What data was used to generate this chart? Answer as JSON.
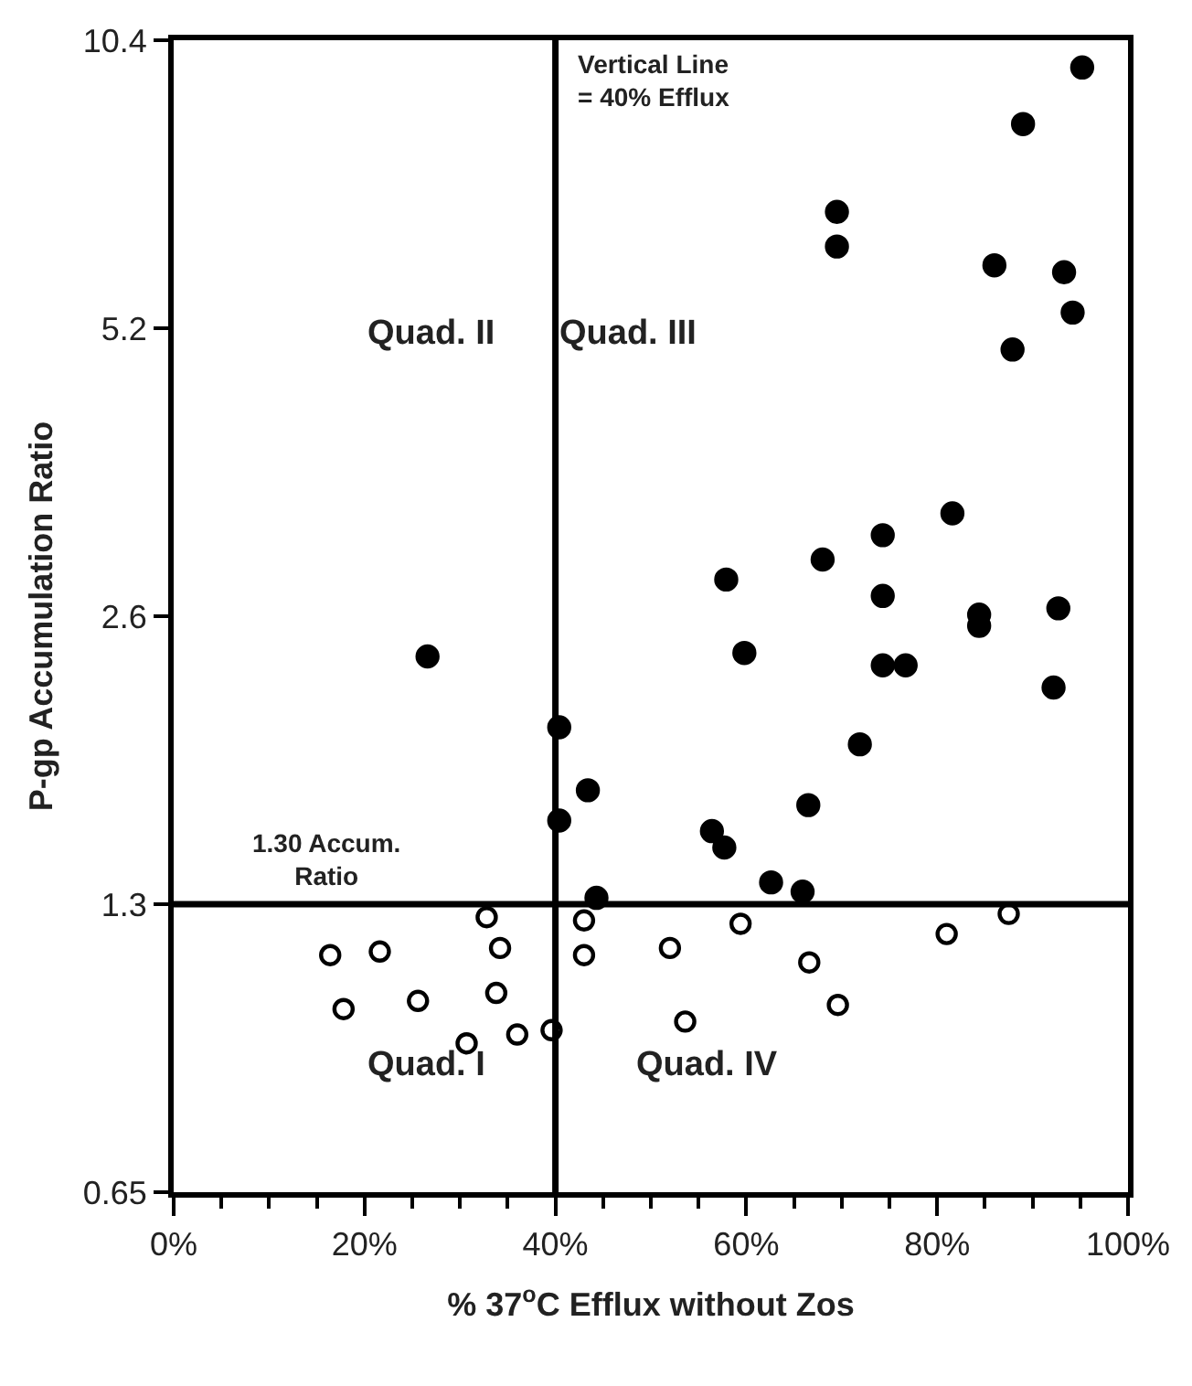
{
  "chart_data": {
    "type": "scatter",
    "xlabel": "% 37$^{o}$C Efflux without Zos",
    "ylabel": "P-gp Accumulation Ratio",
    "log": "y",
    "xlim": [
      0,
      100
    ],
    "xticks": [
      {
        "value": 0,
        "label": "0%"
      },
      {
        "value": 20,
        "label": "20%"
      },
      {
        "value": 40,
        "label": "40%"
      },
      {
        "value": 60,
        "label": "60%"
      },
      {
        "value": 80,
        "label": "80%"
      },
      {
        "value": 100,
        "label": "100%"
      }
    ],
    "ylim": [
      0.65,
      10.4
    ],
    "yticks": [
      0.65,
      1.3,
      2.6,
      5.2,
      10.4
    ],
    "ref_lines": [
      {
        "axis": "x",
        "value": 40,
        "label": "Vertical Line\n= 40% Efflux",
        "color": "#000000"
      },
      {
        "axis": "y",
        "value": 1.3,
        "label": "1.30 Accum.\nRatio",
        "color": "#000000"
      }
    ],
    "annotations": [
      "Quad. I",
      "Quad. II",
      "Quad. III",
      "Quad. IV"
    ],
    "series": [
      {
        "color": "#000000",
        "marker": "circle",
        "x": [
          26.6,
          95.2,
          89,
          69.5,
          69.5,
          86,
          93.3,
          94.2,
          87.9,
          81.6,
          74.3,
          68,
          57.9,
          74.3,
          84.4,
          84.4,
          92.7,
          59.8,
          74.3,
          76.7,
          92.2,
          71.9,
          40.4,
          43.4,
          40.4,
          56.4,
          57.7,
          66.5,
          62.6,
          65.9,
          44.3
        ],
        "values": [
          2.36,
          9.74,
          8.5,
          6.88,
          6.33,
          6.05,
          5.95,
          5.4,
          4.94,
          3.33,
          3.16,
          2.98,
          2.84,
          2.73,
          2.61,
          2.54,
          2.65,
          2.38,
          2.31,
          2.31,
          2.19,
          1.91,
          1.99,
          1.71,
          1.59,
          1.55,
          1.49,
          1.65,
          1.37,
          1.34,
          1.32
        ]
      },
      {
        "color": "#000000",
        "marker": "circle-open",
        "x": [
          32.8,
          16.4,
          21.6,
          34.2,
          43,
          43,
          52,
          59.4,
          66.6,
          81,
          87.5,
          17.8,
          25.6,
          33.8,
          30.7,
          36,
          39.6,
          53.6,
          69.6
        ],
        "values": [
          1.26,
          1.15,
          1.16,
          1.17,
          1.25,
          1.15,
          1.17,
          1.24,
          1.13,
          1.21,
          1.27,
          1.01,
          1.03,
          1.05,
          0.93,
          0.95,
          0.96,
          0.98,
          1.02
        ]
      }
    ]
  }
}
